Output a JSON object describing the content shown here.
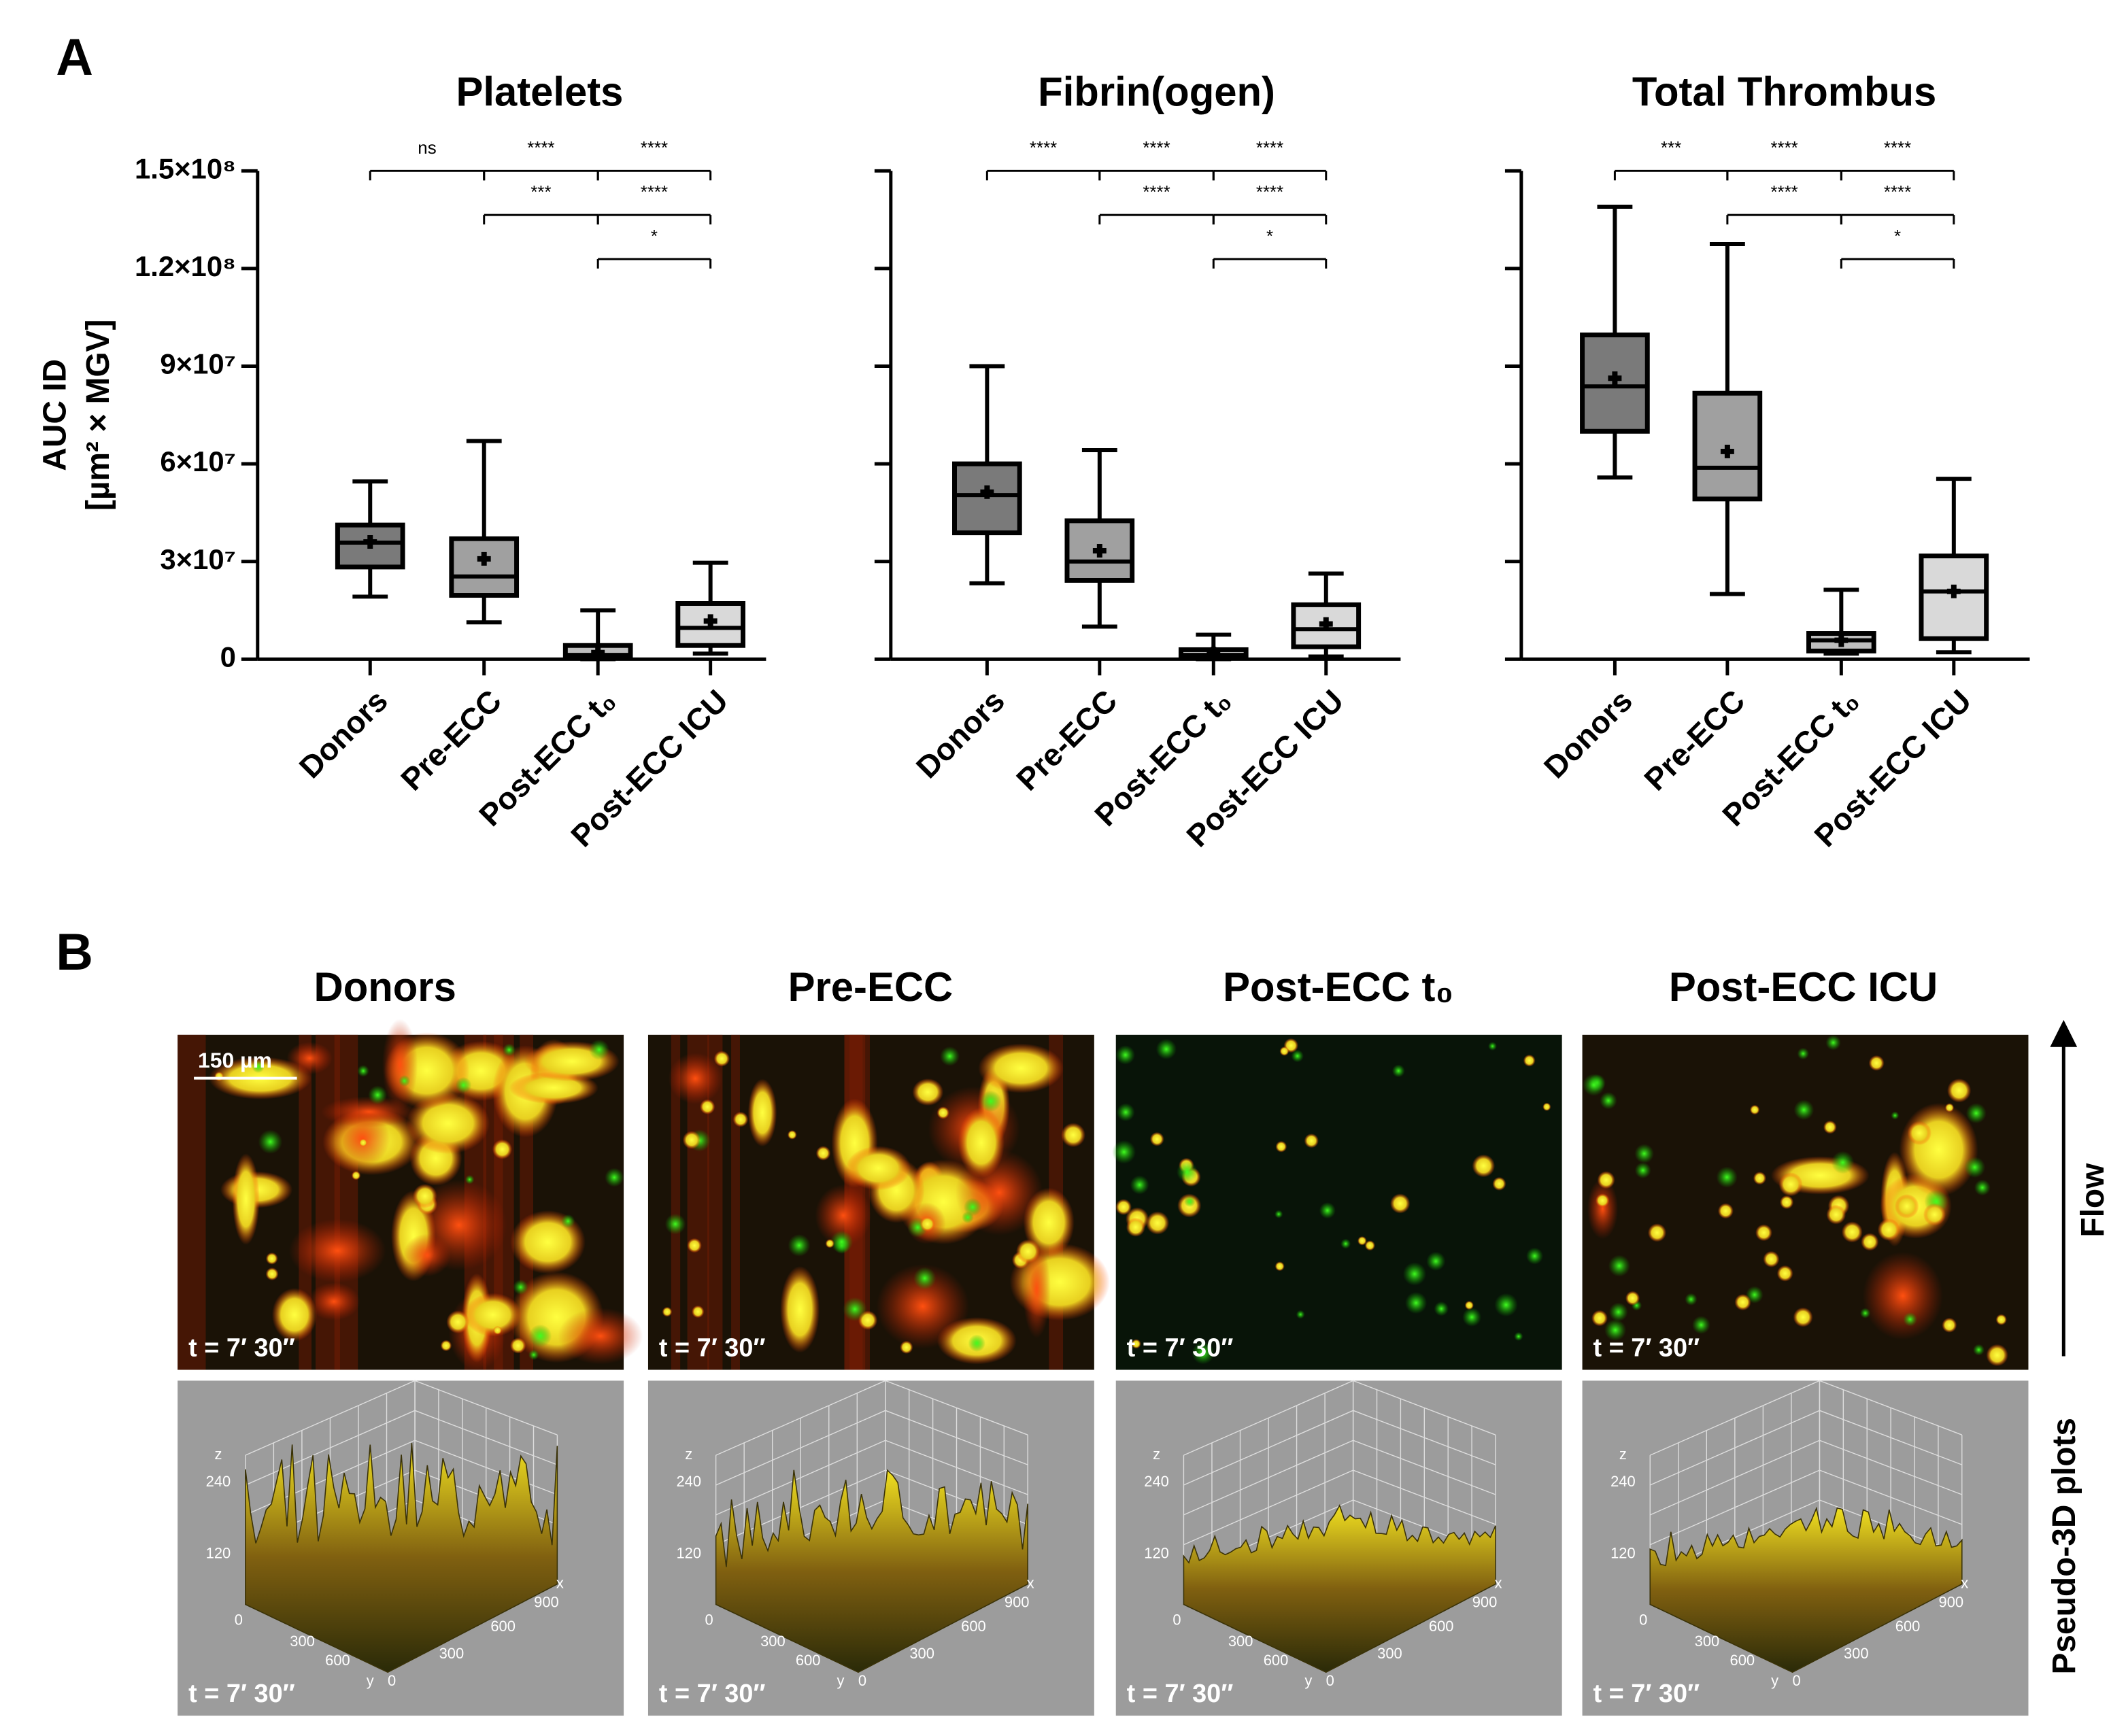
{
  "panel_labels": {
    "a": "A",
    "b": "B"
  },
  "chart_data": [
    {
      "type": "box",
      "title": "Platelets",
      "ylabel": [
        "AUC ID",
        "[µm² × MGV]"
      ],
      "categories": [
        "Donors",
        "Pre-ECC",
        "Post-ECC t₀",
        "Post-ECC ICU"
      ],
      "colors": [
        "#7a7a7a",
        "#a0a0a0",
        "#bdbdbd",
        "#d9d9d9"
      ],
      "ylim": [
        0,
        150000000
      ],
      "yticks": [
        {
          "value": 0,
          "label": "0"
        },
        {
          "value": 30000000,
          "label": "3×10⁷"
        },
        {
          "value": 60000000,
          "label": "6×10⁷"
        },
        {
          "value": 90000000,
          "label": "9×10⁷"
        },
        {
          "value": 120000000,
          "label": "1.2×10⁸"
        },
        {
          "value": 150000000,
          "label": "1.5×10⁸"
        }
      ],
      "boxes": [
        {
          "min": 19200000,
          "q1": 28300000,
          "median": 35800000,
          "q3": 41200000,
          "max": 54600000,
          "mean": 36000000
        },
        {
          "min": 11300000,
          "q1": 19600000,
          "median": 25400000,
          "q3": 37000000,
          "max": 67000000,
          "mean": 30800000
        },
        {
          "min": 0,
          "q1": 400000,
          "median": 1300000,
          "q3": 4200000,
          "max": 15000000,
          "mean": 2000000
        },
        {
          "min": 1700000,
          "q1": 4200000,
          "median": 9600000,
          "q3": 17100000,
          "max": 29600000,
          "mean": 11700000
        }
      ],
      "comparisons": [
        {
          "from": 0,
          "labels": [
            "ns",
            "****",
            "****"
          ]
        },
        {
          "from": 1,
          "labels": [
            "***",
            "****"
          ]
        },
        {
          "from": 2,
          "labels": [
            "*"
          ]
        }
      ]
    },
    {
      "type": "box",
      "title": "Fibrin(ogen)",
      "sharey": true,
      "categories": [
        "Donors",
        "Pre-ECC",
        "Post-ECC t₀",
        "Post-ECC ICU"
      ],
      "colors": [
        "#7a7a7a",
        "#a0a0a0",
        "#bdbdbd",
        "#d9d9d9"
      ],
      "boxes": [
        {
          "min": 23300000,
          "q1": 38800000,
          "median": 50400000,
          "q3": 60000000,
          "max": 90000000,
          "mean": 51300000
        },
        {
          "min": 10000000,
          "q1": 24200000,
          "median": 30000000,
          "q3": 42500000,
          "max": 64200000,
          "mean": 33300000
        },
        {
          "min": 0,
          "q1": 400000,
          "median": 1300000,
          "q3": 2900000,
          "max": 7500000,
          "mean": 1700000
        },
        {
          "min": 800000,
          "q1": 3800000,
          "median": 9200000,
          "q3": 16700000,
          "max": 26300000,
          "mean": 10800000
        }
      ],
      "comparisons": [
        {
          "from": 0,
          "labels": [
            "****",
            "****",
            "****"
          ]
        },
        {
          "from": 1,
          "labels": [
            "****",
            "****"
          ]
        },
        {
          "from": 2,
          "labels": [
            "*"
          ]
        }
      ]
    },
    {
      "type": "box",
      "title": "Total Thrombus",
      "sharey": true,
      "categories": [
        "Donors",
        "Pre-ECC",
        "Post-ECC t₀",
        "Post-ECC ICU"
      ],
      "colors": [
        "#7a7a7a",
        "#a0a0a0",
        "#bdbdbd",
        "#d9d9d9"
      ],
      "boxes": [
        {
          "min": 55800000,
          "q1": 70000000,
          "median": 83800000,
          "q3": 99600000,
          "max": 139000000,
          "mean": 86300000
        },
        {
          "min": 20000000,
          "q1": 49200000,
          "median": 58800000,
          "q3": 81700000,
          "max": 127500000,
          "mean": 63800000
        },
        {
          "min": 1700000,
          "q1": 2500000,
          "median": 5800000,
          "q3": 7900000,
          "max": 21300000,
          "mean": 5800000
        },
        {
          "min": 2100000,
          "q1": 6300000,
          "median": 20800000,
          "q3": 31700000,
          "max": 55400000,
          "mean": 20800000
        }
      ],
      "comparisons": [
        {
          "from": 0,
          "labels": [
            "***",
            "****",
            "****"
          ]
        },
        {
          "from": 1,
          "labels": [
            "****",
            "****"
          ]
        },
        {
          "from": 2,
          "labels": [
            "*"
          ]
        }
      ]
    }
  ],
  "panel_b": {
    "column_titles": [
      "Donors",
      "Pre-ECC",
      "Post-ECC t₀",
      "Post-ECC ICU"
    ],
    "scale_bar": "150 µm",
    "time_label": "t = 7′ 30″",
    "flow": "Flow",
    "row_label": "Pseudo-3D plots",
    "plot_axis": {
      "z_label": "z",
      "z_ticks": [
        "240",
        "120",
        "0"
      ],
      "y_ticks": [
        "300",
        "600"
      ],
      "y_label": "y",
      "y_zero": "0",
      "x_ticks": [
        "300",
        "600",
        "900"
      ],
      "x_label": "x"
    }
  }
}
